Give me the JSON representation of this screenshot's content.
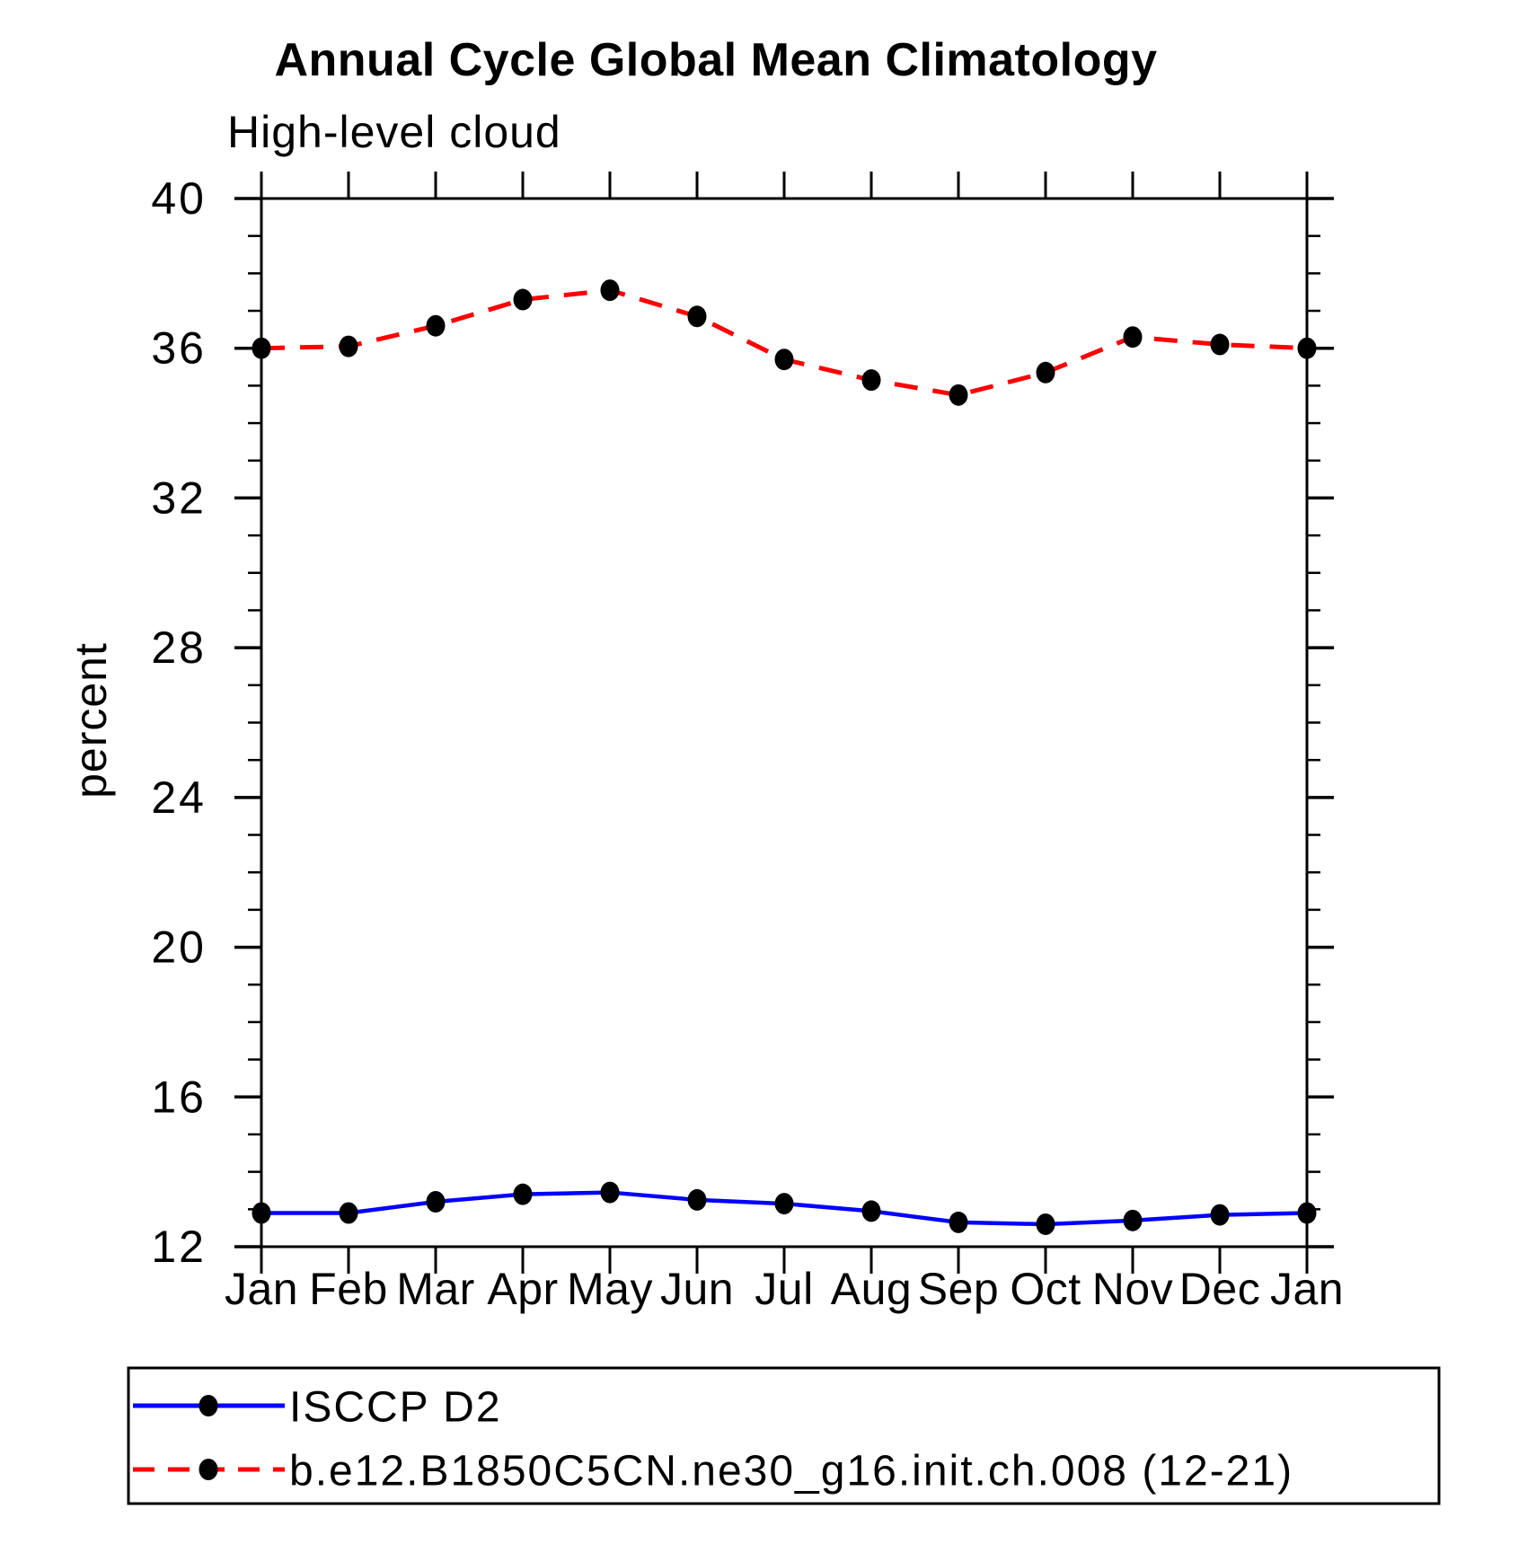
{
  "page": {
    "background": "#ffffff"
  },
  "chart_data": {
    "type": "line",
    "title": "Annual Cycle Global Mean Climatology",
    "subtitle": "High-level cloud",
    "ylabel": "percent",
    "x_categories": [
      "Jan",
      "Feb",
      "Mar",
      "Apr",
      "May",
      "Jun",
      "Jul",
      "Aug",
      "Sep",
      "Oct",
      "Nov",
      "Dec",
      "Jan"
    ],
    "ylim": [
      12,
      40
    ],
    "ytick_major": [
      12,
      16,
      20,
      24,
      28,
      32,
      36,
      40
    ],
    "ytick_minor_step": 1,
    "grid": false,
    "legend_position": "bottom-left-box",
    "axis_color": "#000000",
    "marker_color": "#000000",
    "series": [
      {
        "name": "ISCCP D2",
        "color": "#0000ff",
        "line_style": "solid",
        "marker": "filled-circle",
        "values": [
          12.9,
          12.9,
          13.2,
          13.4,
          13.45,
          13.25,
          13.15,
          12.95,
          12.65,
          12.6,
          12.7,
          12.85,
          12.9
        ]
      },
      {
        "name": "b.e12.B1850C5CN.ne30_g16.init.ch.008 (12-21)",
        "color": "#ff0000",
        "line_style": "dashed",
        "marker": "filled-circle",
        "values": [
          36.0,
          36.05,
          36.6,
          37.3,
          37.55,
          36.85,
          35.7,
          35.15,
          34.75,
          35.35,
          36.3,
          36.1,
          36.0
        ]
      }
    ]
  }
}
